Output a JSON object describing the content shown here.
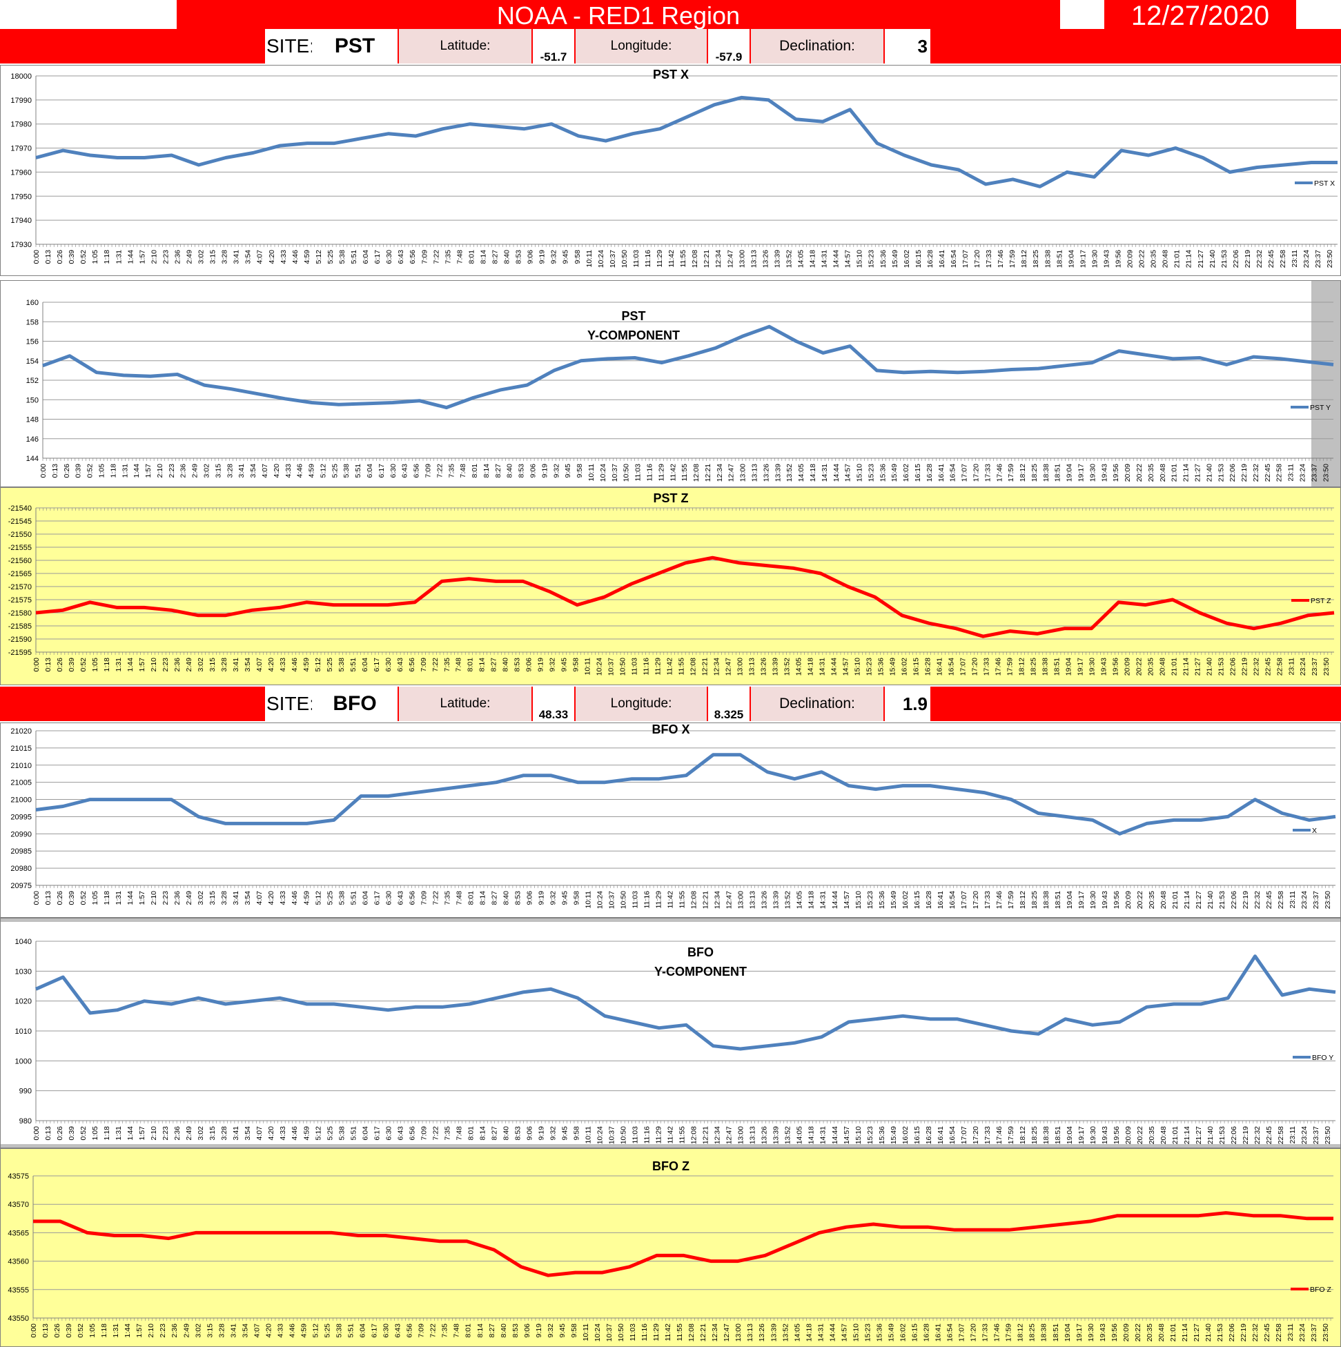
{
  "header": {
    "title": "NOAA - RED1 Region",
    "date": "12/27/2020"
  },
  "sites": [
    {
      "site_label": "SITE:",
      "site": "PST",
      "lat_label": "Latitude:",
      "lat": "-51.7",
      "lon_label": "Longitude:",
      "lon": "-57.9",
      "dec_label": "Declination:",
      "dec": "3"
    },
    {
      "site_label": "SITE:",
      "site": "BFO",
      "lat_label": "Latitude:",
      "lat": "48.33",
      "lon_label": "Longitude:",
      "lon": "8.325",
      "dec_label": "Declination:",
      "dec": "1.9"
    }
  ],
  "colors": {
    "blue": "#4f81bd",
    "red": "#ff0000",
    "grey_bg": "#c0c0c0",
    "yellow_bg": "#ffff99"
  },
  "x_tick_labels": [
    "0:00",
    "0:13",
    "0:26",
    "0:39",
    "0:52",
    "1:05",
    "1:18",
    "1:31",
    "1:44",
    "1:57",
    "2:10",
    "2:23",
    "2:36",
    "2:49",
    "3:02",
    "3:15",
    "3:28",
    "3:41",
    "3:54",
    "4:07",
    "4:20",
    "4:33",
    "4:46",
    "4:59",
    "5:12",
    "5:25",
    "5:38",
    "5:51",
    "6:04",
    "6:17",
    "6:30",
    "6:43",
    "6:56",
    "7:09",
    "7:22",
    "7:35",
    "7:48",
    "8:01",
    "8:14",
    "8:27",
    "8:40",
    "8:53",
    "9:06",
    "9:19",
    "9:32",
    "9:45",
    "9:58",
    "10:11",
    "10:24",
    "10:37",
    "10:50",
    "11:03",
    "11:16",
    "11:29",
    "11:42",
    "11:55",
    "12:08",
    "12:21",
    "12:34",
    "12:47",
    "13:00",
    "13:13",
    "13:26",
    "13:39",
    "13:52",
    "14:05",
    "14:18",
    "14:31",
    "14:44",
    "14:57",
    "15:10",
    "15:23",
    "15:36",
    "15:49",
    "16:02",
    "16:15",
    "16:28",
    "16:41",
    "16:54",
    "17:07",
    "17:20",
    "17:33",
    "17:46",
    "17:59",
    "18:12",
    "18:25",
    "18:38",
    "18:51",
    "19:04",
    "19:17",
    "19:30",
    "19:43",
    "19:56",
    "20:09",
    "20:22",
    "20:35",
    "20:48",
    "21:01",
    "21:14",
    "21:27",
    "21:40",
    "21:53",
    "22:06",
    "22:19",
    "22:32",
    "22:45",
    "22:58",
    "23:11",
    "23:24",
    "23:37",
    "23:50"
  ],
  "chart_data": [
    {
      "type": "line",
      "title": "PST X",
      "legend": "PST X",
      "legend_position": "right",
      "ylim": [
        17930,
        18000
      ],
      "yticks": [
        17930,
        17940,
        17950,
        17960,
        17970,
        17980,
        17990,
        18000
      ],
      "color": "#4f81bd",
      "grid": true,
      "x": [
        "0:00",
        "0:30",
        "1:00",
        "1:30",
        "2:00",
        "2:30",
        "3:00",
        "3:30",
        "4:00",
        "4:30",
        "5:00",
        "5:30",
        "6:00",
        "6:30",
        "7:00",
        "7:30",
        "8:00",
        "8:30",
        "9:00",
        "9:30",
        "10:00",
        "10:30",
        "11:00",
        "11:30",
        "12:00",
        "12:30",
        "13:00",
        "13:30",
        "14:00",
        "14:30",
        "15:00",
        "15:30",
        "16:00",
        "16:30",
        "17:00",
        "17:30",
        "18:00",
        "18:30",
        "19:00",
        "19:30",
        "20:00",
        "20:30",
        "21:00",
        "21:30",
        "22:00",
        "22:30",
        "23:00",
        "23:30",
        "23:59"
      ],
      "values": [
        17966,
        17969,
        17967,
        17966,
        17966,
        17967,
        17963,
        17966,
        17968,
        17971,
        17972,
        17972,
        17974,
        17976,
        17975,
        17978,
        17980,
        17979,
        17978,
        17980,
        17975,
        17973,
        17976,
        17978,
        17983,
        17988,
        17991,
        17990,
        17982,
        17981,
        17986,
        17972,
        17967,
        17963,
        17961,
        17955,
        17957,
        17954,
        17960,
        17958,
        17969,
        17967,
        17970,
        17966,
        17960,
        17962,
        17963,
        17964,
        17964
      ]
    },
    {
      "type": "line",
      "title": "PST Y-COMPONENT",
      "legend": "PST Y",
      "legend_position": "right",
      "ylim": [
        144,
        160
      ],
      "yticks": [
        144,
        146,
        148,
        150,
        152,
        154,
        156,
        158,
        160
      ],
      "color": "#4f81bd",
      "grid": true,
      "x": [
        "0:00",
        "0:30",
        "1:00",
        "1:30",
        "2:00",
        "2:30",
        "3:00",
        "3:30",
        "4:00",
        "4:30",
        "5:00",
        "5:30",
        "6:00",
        "6:30",
        "7:00",
        "7:30",
        "8:00",
        "8:30",
        "9:00",
        "9:30",
        "10:00",
        "10:30",
        "11:00",
        "11:30",
        "12:00",
        "12:30",
        "13:00",
        "13:30",
        "14:00",
        "14:30",
        "15:00",
        "15:30",
        "16:00",
        "16:30",
        "17:00",
        "17:30",
        "18:00",
        "18:30",
        "19:00",
        "19:30",
        "20:00",
        "20:30",
        "21:00",
        "21:30",
        "22:00",
        "22:30",
        "23:00",
        "23:30",
        "23:59"
      ],
      "values": [
        153.5,
        154.5,
        152.8,
        152.5,
        152.4,
        152.6,
        151.5,
        151.1,
        150.6,
        150.1,
        149.7,
        149.5,
        149.6,
        149.7,
        149.9,
        149.2,
        150.2,
        151.0,
        151.5,
        153.0,
        154.0,
        154.2,
        154.3,
        153.8,
        154.5,
        155.3,
        156.5,
        157.5,
        156.0,
        154.8,
        155.5,
        153.0,
        152.8,
        152.9,
        152.8,
        152.9,
        153.1,
        153.2,
        153.5,
        153.8,
        155.0,
        154.6,
        154.2,
        154.3,
        153.6,
        154.4,
        154.2,
        153.9,
        153.6
      ]
    },
    {
      "type": "line",
      "title": "PST Z",
      "legend": "PST Z",
      "legend_position": "right",
      "ylim": [
        -21595,
        -21540
      ],
      "yticks": [
        -21595,
        -21590,
        -21585,
        -21580,
        -21575,
        -21570,
        -21565,
        -21560,
        -21555,
        -21550,
        -21545,
        -21540
      ],
      "color": "#ff0000",
      "grid": true,
      "x": [
        "0:00",
        "0:30",
        "1:00",
        "1:30",
        "2:00",
        "2:30",
        "3:00",
        "3:30",
        "4:00",
        "4:30",
        "5:00",
        "5:30",
        "6:00",
        "6:30",
        "7:00",
        "7:30",
        "8:00",
        "8:30",
        "9:00",
        "9:30",
        "10:00",
        "10:30",
        "11:00",
        "11:30",
        "12:00",
        "12:30",
        "13:00",
        "13:30",
        "14:00",
        "14:30",
        "15:00",
        "15:30",
        "16:00",
        "16:30",
        "17:00",
        "17:30",
        "18:00",
        "18:30",
        "19:00",
        "19:30",
        "20:00",
        "20:30",
        "21:00",
        "21:30",
        "22:00",
        "22:30",
        "23:00",
        "23:30",
        "23:59"
      ],
      "values": [
        -21580,
        -21579,
        -21576,
        -21578,
        -21578,
        -21579,
        -21581,
        -21581,
        -21579,
        -21578,
        -21576,
        -21577,
        -21577,
        -21577,
        -21576,
        -21568,
        -21567,
        -21568,
        -21568,
        -21572,
        -21577,
        -21574,
        -21569,
        -21565,
        -21561,
        -21559,
        -21561,
        -21562,
        -21563,
        -21565,
        -21570,
        -21574,
        -21581,
        -21584,
        -21586,
        -21589,
        -21587,
        -21588,
        -21586,
        -21586,
        -21576,
        -21577,
        -21575,
        -21580,
        -21584,
        -21586,
        -21584,
        -21581,
        -21580
      ]
    },
    {
      "type": "line",
      "title": "BFO  X",
      "legend": "X",
      "legend_position": "right",
      "ylim": [
        20975,
        21020
      ],
      "yticks": [
        20975,
        20980,
        20985,
        20990,
        20995,
        21000,
        21005,
        21010,
        21015,
        21020
      ],
      "color": "#4f81bd",
      "grid": true,
      "x": [
        "0:00",
        "0:30",
        "1:00",
        "1:30",
        "2:00",
        "2:30",
        "3:00",
        "3:30",
        "4:00",
        "4:30",
        "5:00",
        "5:30",
        "6:00",
        "6:30",
        "7:00",
        "7:30",
        "8:00",
        "8:30",
        "9:00",
        "9:30",
        "10:00",
        "10:30",
        "11:00",
        "11:30",
        "12:00",
        "12:30",
        "13:00",
        "13:30",
        "14:00",
        "14:30",
        "15:00",
        "15:30",
        "16:00",
        "16:30",
        "17:00",
        "17:30",
        "18:00",
        "18:30",
        "19:00",
        "19:30",
        "20:00",
        "20:30",
        "21:00",
        "21:30",
        "22:00",
        "22:30",
        "23:00",
        "23:30",
        "23:59"
      ],
      "values": [
        20997,
        20998,
        21000,
        21000,
        21000,
        21000,
        20995,
        20993,
        20993,
        20993,
        20993,
        20994,
        21001,
        21001,
        21002,
        21003,
        21004,
        21005,
        21007,
        21007,
        21005,
        21005,
        21006,
        21006,
        21007,
        21013,
        21013,
        21008,
        21006,
        21008,
        21004,
        21003,
        21004,
        21004,
        21003,
        21002,
        21000,
        20996,
        20995,
        20994,
        20990,
        20993,
        20994,
        20994,
        20995,
        21000,
        20996,
        20994,
        20995
      ]
    },
    {
      "type": "line",
      "title": "BFO Y-COMPONENT",
      "legend": "BFO Y",
      "legend_position": "right",
      "ylim": [
        980,
        1040
      ],
      "yticks": [
        980,
        990,
        1000,
        1010,
        1020,
        1030,
        1040
      ],
      "color": "#4f81bd",
      "grid": true,
      "x": [
        "0:00",
        "0:30",
        "1:00",
        "1:30",
        "2:00",
        "2:30",
        "3:00",
        "3:30",
        "4:00",
        "4:30",
        "5:00",
        "5:30",
        "6:00",
        "6:30",
        "7:00",
        "7:30",
        "8:00",
        "8:30",
        "9:00",
        "9:30",
        "10:00",
        "10:30",
        "11:00",
        "11:30",
        "12:00",
        "12:30",
        "13:00",
        "13:30",
        "14:00",
        "14:30",
        "15:00",
        "15:30",
        "16:00",
        "16:30",
        "17:00",
        "17:30",
        "18:00",
        "18:30",
        "19:00",
        "19:30",
        "20:00",
        "20:30",
        "21:00",
        "21:30",
        "22:00",
        "22:30",
        "23:00",
        "23:30",
        "23:59"
      ],
      "values": [
        1024,
        1028,
        1016,
        1017,
        1020,
        1019,
        1021,
        1019,
        1020,
        1021,
        1019,
        1019,
        1018,
        1017,
        1018,
        1018,
        1019,
        1021,
        1023,
        1024,
        1021,
        1015,
        1013,
        1011,
        1012,
        1005,
        1004,
        1005,
        1006,
        1008,
        1013,
        1014,
        1015,
        1014,
        1014,
        1012,
        1010,
        1009,
        1014,
        1012,
        1013,
        1018,
        1019,
        1019,
        1021,
        1035,
        1022,
        1024,
        1023
      ]
    },
    {
      "type": "line",
      "title": "BFO Z",
      "legend": "BFO Z",
      "legend_position": "right",
      "ylim": [
        43550,
        43575
      ],
      "yticks": [
        43550,
        43555,
        43560,
        43565,
        43570,
        43575
      ],
      "color": "#ff0000",
      "grid": true,
      "x": [
        "0:00",
        "0:30",
        "1:00",
        "1:30",
        "2:00",
        "2:30",
        "3:00",
        "3:30",
        "4:00",
        "4:30",
        "5:00",
        "5:30",
        "6:00",
        "6:30",
        "7:00",
        "7:30",
        "8:00",
        "8:30",
        "9:00",
        "9:30",
        "10:00",
        "10:30",
        "11:00",
        "11:30",
        "12:00",
        "12:30",
        "13:00",
        "13:30",
        "14:00",
        "14:30",
        "15:00",
        "15:30",
        "16:00",
        "16:30",
        "17:00",
        "17:30",
        "18:00",
        "18:30",
        "19:00",
        "19:30",
        "20:00",
        "20:30",
        "21:00",
        "21:30",
        "22:00",
        "22:30",
        "23:00",
        "23:30",
        "23:59"
      ],
      "values": [
        43567,
        43567,
        43565,
        43564.5,
        43564.5,
        43564,
        43565,
        43565,
        43565,
        43565,
        43565,
        43565,
        43564.5,
        43564.5,
        43564,
        43563.5,
        43563.5,
        43562,
        43559,
        43557.5,
        43558,
        43558,
        43559,
        43561,
        43561,
        43560,
        43560,
        43561,
        43563,
        43565,
        43566,
        43566.5,
        43566,
        43566,
        43565.5,
        43565.5,
        43565.5,
        43566,
        43566.5,
        43567,
        43568,
        43568,
        43568,
        43568,
        43568.5,
        43568,
        43568,
        43567.5,
        43567.5
      ]
    }
  ]
}
